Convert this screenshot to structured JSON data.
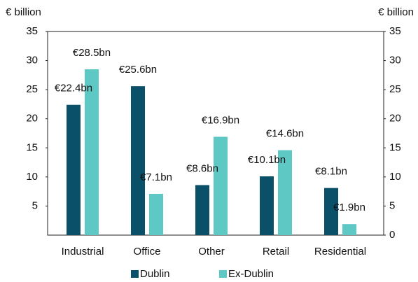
{
  "chart_data": {
    "type": "bar",
    "ylabel": "€ billion",
    "y2label": "€ billion",
    "categories": [
      "Industrial",
      "Office",
      "Other",
      "Retail",
      "Residential"
    ],
    "series": [
      {
        "name": "Dublin",
        "color": "#0b5069",
        "values": [
          22.4,
          25.6,
          8.6,
          10.1,
          8.1
        ],
        "value_labels": [
          "€22.4bn",
          "€25.6bn",
          "€8.6bn",
          "€10.1bn",
          "€8.1bn"
        ]
      },
      {
        "name": "Ex-Dublin",
        "color": "#5ec8c4",
        "values": [
          28.5,
          7.1,
          16.9,
          14.6,
          1.9
        ],
        "value_labels": [
          "€28.5bn",
          "€7.1bn",
          "€16.9bn",
          "€14.6bn",
          "€1.9bn"
        ]
      }
    ],
    "ylim": [
      0,
      35
    ],
    "yticks": [
      5,
      10,
      15,
      20,
      25,
      30,
      35
    ],
    "y2lim": [
      0,
      35
    ],
    "y2ticks": [
      0,
      5,
      10,
      15,
      20,
      25,
      30,
      35
    ],
    "legend": "bottom"
  }
}
